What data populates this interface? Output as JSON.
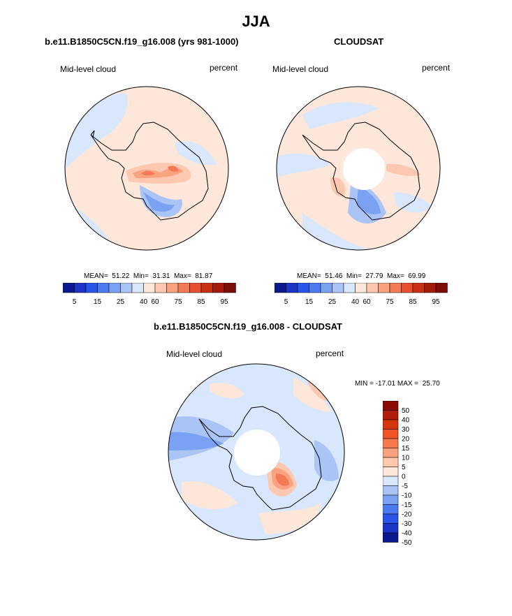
{
  "title": "JJA",
  "panels": [
    {
      "title": "b.e11.B1850C5CN.f19_g16.008 (yrs 981-1000)",
      "left_label": "Mid-level cloud",
      "right_label": "percent",
      "stats": "MEAN=  51.22  Min=  31.31  Max=  81.87"
    },
    {
      "title": "CLOUDSAT",
      "left_label": "Mid-level cloud",
      "right_label": "percent",
      "stats": "MEAN=  51.46  Min=  27.79  Max=  69.99"
    },
    {
      "title": "b.e11.B1850C5CN.f19_g16.008 - CLOUDSAT",
      "left_label": "Mid-level cloud",
      "right_label": "percent",
      "stats": "MIN = -17.01 MAX =  25.70"
    }
  ],
  "colorbar_abs": {
    "tick_labels": [
      "5",
      "15",
      "25",
      "40",
      "60",
      "75",
      "85",
      "95"
    ],
    "colors": [
      "#0a1a8c",
      "#1c35c7",
      "#2a55e8",
      "#4d7af0",
      "#7ba1f2",
      "#a9c4f5",
      "#d8e7fb",
      "#fde7da",
      "#fcc8b0",
      "#f9a280",
      "#f47955",
      "#e8502f",
      "#c93115",
      "#a51b0b",
      "#7d0b06"
    ]
  },
  "colorbar_diff": {
    "labels": [
      "50",
      "40",
      "30",
      "20",
      "15",
      "10",
      "5",
      "0",
      "-5",
      "-10",
      "-15",
      "-20",
      "-30",
      "-40",
      "-50"
    ],
    "colors": [
      "#8c0a05",
      "#b01d0b",
      "#d4360f",
      "#ee5426",
      "#f6784c",
      "#fba07d",
      "#fdc8ad",
      "#fde7da",
      "#d8e7fb",
      "#a9c4f5",
      "#7ba1f2",
      "#4d7af0",
      "#2a55e8",
      "#1c35c7",
      "#0a1a8c"
    ]
  }
}
